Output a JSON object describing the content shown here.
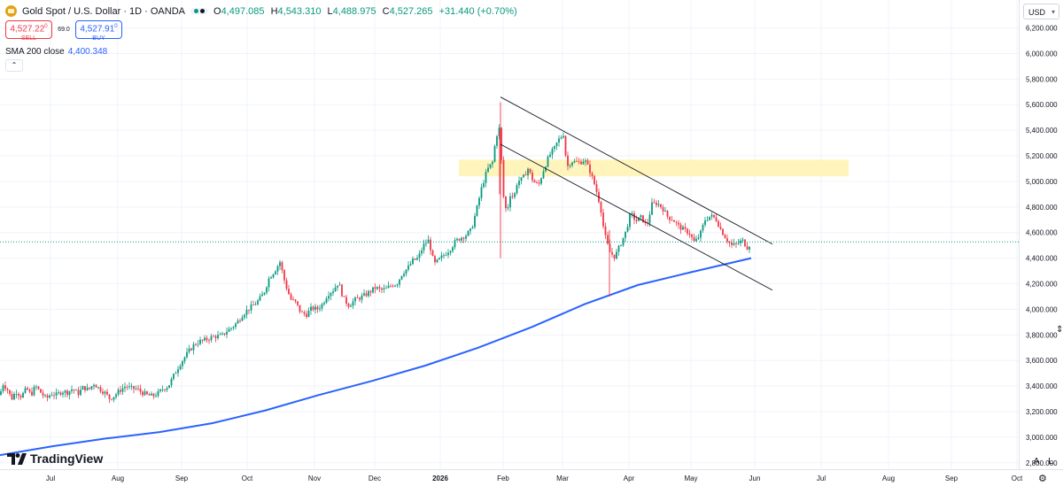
{
  "header": {
    "symbol_title": "Gold Spot / U.S. Dollar · 1D · OANDA",
    "open_label": "O",
    "open": "4,497.085",
    "high_label": "H",
    "high": "4,543.310",
    "low_label": "L",
    "low": "4,488.975",
    "close_label": "C",
    "close": "4,527.265",
    "change": "+31.440 (+0.70%)"
  },
  "trade": {
    "sell_price": "4,527.22",
    "sell_sup": "0",
    "sell_label": "SELL",
    "spread": "69.0",
    "buy_price": "4,527.91",
    "buy_sup": "0",
    "buy_label": "BUY"
  },
  "indicator": {
    "name": "SMA 200 close",
    "value": "4,400.348"
  },
  "collapse_icon": "chevron-up-icon",
  "currency": "USD",
  "brand": "TradingView",
  "scale_buttons": {
    "auto": "A",
    "log": "L"
  },
  "colors": {
    "up": "#089981",
    "down": "#f23645",
    "sma": "#2962ff",
    "zone": "#fff3b0",
    "trendline": "#131722",
    "grid": "#f0f3fa"
  },
  "chart_data": {
    "type": "candlestick",
    "y_ticks": [
      "2,800.000",
      "3,000.000",
      "3,200.000",
      "3,400.000",
      "3,600.000",
      "3,800.000",
      "4,000.000",
      "4,200.000",
      "4,400.000",
      "4,600.000",
      "4,800.000",
      "5,000.000",
      "5,200.000",
      "5,400.000",
      "5,600.000",
      "5,800.000",
      "6,000.000",
      "6,200.000"
    ],
    "ylim": [
      2750,
      6280
    ],
    "x_labels": [
      "Jul",
      "Aug",
      "Sep",
      "Oct",
      "Nov",
      "Dec",
      "2026",
      "Feb",
      "Mar",
      "Apr",
      "May",
      "Jun",
      "Jul",
      "Aug",
      "Sep",
      "Oct"
    ],
    "current_price": 4527.265,
    "price_path": [
      [
        0,
        3330
      ],
      [
        3,
        3420
      ],
      [
        8,
        3380
      ],
      [
        13,
        3300
      ],
      [
        18,
        3360
      ],
      [
        24,
        3320
      ],
      [
        30,
        3380
      ],
      [
        35,
        3330
      ],
      [
        40,
        3400
      ],
      [
        46,
        3350
      ],
      [
        52,
        3300
      ],
      [
        58,
        3340
      ],
      [
        64,
        3330
      ],
      [
        70,
        3360
      ],
      [
        76,
        3350
      ],
      [
        82,
        3380
      ],
      [
        88,
        3340
      ],
      [
        94,
        3390
      ],
      [
        100,
        3370
      ],
      [
        106,
        3420
      ],
      [
        112,
        3380
      ],
      [
        118,
        3350
      ],
      [
        124,
        3300
      ],
      [
        130,
        3330
      ],
      [
        136,
        3370
      ],
      [
        142,
        3400
      ],
      [
        148,
        3380
      ],
      [
        154,
        3380
      ],
      [
        160,
        3350
      ],
      [
        166,
        3330
      ],
      [
        172,
        3320
      ],
      [
        178,
        3340
      ],
      [
        184,
        3380
      ],
      [
        190,
        3400
      ],
      [
        196,
        3480
      ],
      [
        202,
        3560
      ],
      [
        208,
        3620
      ],
      [
        214,
        3680
      ],
      [
        220,
        3730
      ],
      [
        226,
        3750
      ],
      [
        232,
        3760
      ],
      [
        238,
        3780
      ],
      [
        244,
        3790
      ],
      [
        250,
        3790
      ],
      [
        256,
        3830
      ],
      [
        262,
        3860
      ],
      [
        268,
        3900
      ],
      [
        274,
        3960
      ],
      [
        280,
        4000
      ],
      [
        286,
        4030
      ],
      [
        292,
        4070
      ],
      [
        298,
        4130
      ],
      [
        304,
        4250
      ],
      [
        310,
        4300
      ],
      [
        316,
        4370
      ],
      [
        322,
        4200
      ],
      [
        328,
        4080
      ],
      [
        334,
        4050
      ],
      [
        340,
        3970
      ],
      [
        346,
        3960
      ],
      [
        352,
        4010
      ],
      [
        358,
        4000
      ],
      [
        364,
        4040
      ],
      [
        370,
        4120
      ],
      [
        376,
        4150
      ],
      [
        382,
        4210
      ],
      [
        388,
        4080
      ],
      [
        394,
        4030
      ],
      [
        400,
        4070
      ],
      [
        406,
        4090
      ],
      [
        412,
        4110
      ],
      [
        418,
        4140
      ],
      [
        424,
        4170
      ],
      [
        430,
        4150
      ],
      [
        436,
        4160
      ],
      [
        442,
        4190
      ],
      [
        448,
        4200
      ],
      [
        454,
        4280
      ],
      [
        460,
        4320
      ],
      [
        466,
        4380
      ],
      [
        472,
        4400
      ],
      [
        478,
        4500
      ],
      [
        484,
        4540
      ],
      [
        490,
        4350
      ],
      [
        496,
        4390
      ],
      [
        502,
        4430
      ],
      [
        508,
        4470
      ],
      [
        514,
        4530
      ],
      [
        520,
        4560
      ],
      [
        526,
        4580
      ],
      [
        532,
        4620
      ],
      [
        538,
        4780
      ],
      [
        544,
        4960
      ],
      [
        550,
        5090
      ],
      [
        556,
        5150
      ],
      [
        560,
        5350
      ],
      [
        564,
        5420
      ],
      [
        568,
        4900
      ],
      [
        572,
        4750
      ],
      [
        576,
        4900
      ],
      [
        580,
        4870
      ],
      [
        584,
        5000
      ],
      [
        590,
        5020
      ],
      [
        596,
        5100
      ],
      [
        602,
        5000
      ],
      [
        608,
        4970
      ],
      [
        614,
        5100
      ],
      [
        620,
        5200
      ],
      [
        626,
        5260
      ],
      [
        630,
        5320
      ],
      [
        636,
        5370
      ],
      [
        640,
        5110
      ],
      [
        645,
        5160
      ],
      [
        650,
        5150
      ],
      [
        655,
        5150
      ],
      [
        660,
        5170
      ],
      [
        666,
        5080
      ],
      [
        672,
        4960
      ],
      [
        678,
        4800
      ],
      [
        682,
        4600
      ],
      [
        688,
        4450
      ],
      [
        694,
        4410
      ],
      [
        700,
        4500
      ],
      [
        706,
        4600
      ],
      [
        712,
        4750
      ],
      [
        718,
        4690
      ],
      [
        724,
        4720
      ],
      [
        730,
        4650
      ],
      [
        736,
        4820
      ],
      [
        742,
        4830
      ],
      [
        748,
        4790
      ],
      [
        754,
        4720
      ],
      [
        760,
        4700
      ],
      [
        766,
        4650
      ],
      [
        772,
        4620
      ],
      [
        778,
        4600
      ],
      [
        784,
        4520
      ],
      [
        790,
        4580
      ],
      [
        796,
        4700
      ],
      [
        802,
        4730
      ],
      [
        808,
        4710
      ],
      [
        814,
        4620
      ],
      [
        820,
        4550
      ],
      [
        826,
        4500
      ],
      [
        832,
        4510
      ],
      [
        838,
        4540
      ],
      [
        844,
        4480
      ],
      [
        848,
        4527
      ]
    ],
    "sma200_path": [
      [
        0,
        2860
      ],
      [
        60,
        2930
      ],
      [
        120,
        2990
      ],
      [
        180,
        3040
      ],
      [
        240,
        3110
      ],
      [
        300,
        3210
      ],
      [
        360,
        3330
      ],
      [
        420,
        3440
      ],
      [
        480,
        3560
      ],
      [
        540,
        3700
      ],
      [
        600,
        3860
      ],
      [
        660,
        4040
      ],
      [
        720,
        4190
      ],
      [
        780,
        4290
      ],
      [
        848,
        4400
      ]
    ],
    "resistance_zone": {
      "x1": 518,
      "x2": 958,
      "y_low": 5040,
      "y_high": 5170
    },
    "trendlines": [
      {
        "x1": 565,
        "y1": 5660,
        "x2": 872,
        "y2": 4510
      },
      {
        "x1": 565,
        "y1": 5290,
        "x2": 872,
        "y2": 4150
      }
    ]
  }
}
